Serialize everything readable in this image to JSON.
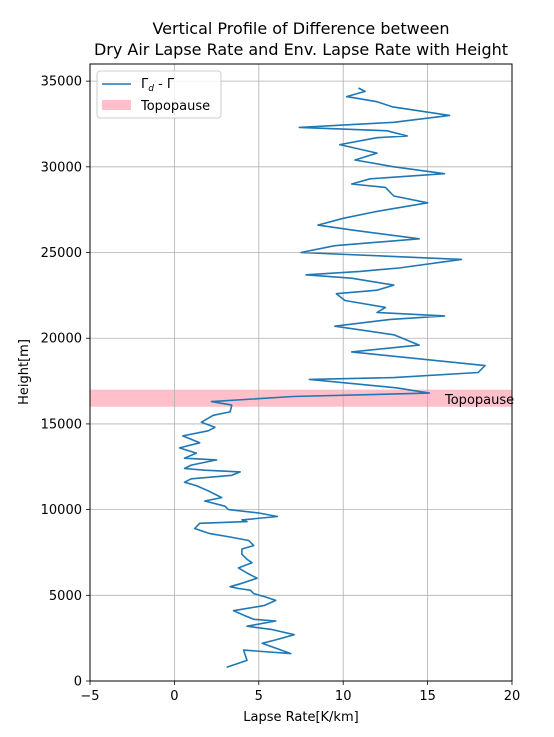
{
  "chart_data": {
    "type": "line",
    "title_line1": "Vertical Profile of Difference between",
    "title_line2": "Dry Air Lapse Rate and Env. Lapse Rate with Height",
    "xlabel": "Lapse Rate[K/km]",
    "ylabel": "Height[m]",
    "xlim": [
      -5,
      20
    ],
    "ylim": [
      0,
      36000
    ],
    "xticks": [
      -5,
      0,
      5,
      10,
      15,
      20
    ],
    "yticks": [
      0,
      5000,
      10000,
      15000,
      20000,
      25000,
      30000,
      35000
    ],
    "xtick_labels": [
      "−5",
      "0",
      "5",
      "10",
      "15",
      "20"
    ],
    "ytick_labels": [
      "0",
      "5000",
      "10000",
      "15000",
      "20000",
      "25000",
      "30000",
      "35000"
    ],
    "grid": true,
    "legend_position": "top-left",
    "series": [
      {
        "legend_label": "Γ",
        "legend_sub": "d",
        "legend_suffix": " - Γ",
        "color": "#1f77b4",
        "x": [
          3.1,
          4.3,
          4.1,
          6.9,
          5.2,
          6.0,
          7.1,
          5.8,
          4.3,
          6.0,
          4.7,
          4.2,
          3.5,
          5.3,
          6.0,
          5.4,
          4.7,
          4.5,
          3.8,
          3.3,
          4.0,
          4.9,
          4.3,
          3.8,
          4.6,
          4.3,
          4.0,
          4.0,
          4.7,
          4.4,
          3.3,
          2.1,
          1.2,
          1.5,
          4.3,
          4.0,
          6.1,
          5.0,
          3.2,
          3.0,
          1.8,
          2.8,
          2.0,
          1.3,
          0.6,
          1.0,
          3.4,
          3.9,
          1.8,
          0.6,
          1.0,
          2.5,
          0.6,
          1.3,
          0.3,
          1.5,
          0.5,
          2.0,
          2.4,
          1.6,
          2.3,
          3.3,
          3.4,
          2.2,
          7.0,
          15.1,
          13.2,
          8.0,
          13.0,
          18.0,
          18.4,
          10.5,
          14.5,
          13.0,
          9.5,
          12.8,
          16.0,
          12.0,
          12.5,
          10.1,
          9.6,
          12.0,
          13.0,
          10.5,
          7.8,
          11.0,
          13.3,
          17.0,
          7.5,
          9.5,
          14.5,
          10.6,
          8.5,
          10.0,
          12.0,
          15.0,
          13.0,
          12.5,
          10.5,
          11.6,
          16.0,
          13.0,
          10.7,
          12.0,
          9.8,
          12.0,
          13.8,
          12.6,
          7.4,
          13.0,
          16.3,
          12.9,
          12.0,
          10.2,
          11.3,
          10.9
        ],
        "y": [
          800,
          1200,
          1800,
          1600,
          2200,
          2400,
          2700,
          3000,
          3200,
          3500,
          3600,
          3800,
          4100,
          4400,
          4700,
          4900,
          5100,
          5300,
          5400,
          5500,
          5700,
          6000,
          6300,
          6600,
          6900,
          7100,
          7400,
          7700,
          7900,
          8200,
          8400,
          8600,
          8900,
          9200,
          9300,
          9400,
          9600,
          9800,
          10000,
          10200,
          10500,
          10700,
          11100,
          11400,
          11600,
          11800,
          12000,
          12200,
          12300,
          12400,
          12600,
          12900,
          13000,
          13300,
          13600,
          13900,
          14300,
          14600,
          14800,
          15100,
          15500,
          15700,
          16100,
          16300,
          16600,
          16800,
          17100,
          17600,
          17700,
          18000,
          18400,
          19200,
          19600,
          20200,
          20700,
          21100,
          21300,
          21500,
          21800,
          22200,
          22600,
          22800,
          23100,
          23500,
          23700,
          23900,
          24100,
          24600,
          25000,
          25400,
          25800,
          26300,
          26600,
          27000,
          27400,
          27900,
          28300,
          28800,
          29000,
          29300,
          29600,
          30000,
          30400,
          30800,
          31300,
          31700,
          31800,
          32100,
          32300,
          32600,
          33000,
          33500,
          33800,
          34100,
          34400,
          34600
        ]
      }
    ],
    "band": {
      "legend_label": "Topopause",
      "label": "Topopause",
      "y_range": [
        16000,
        17000
      ],
      "color": "#ffc0cb"
    }
  }
}
